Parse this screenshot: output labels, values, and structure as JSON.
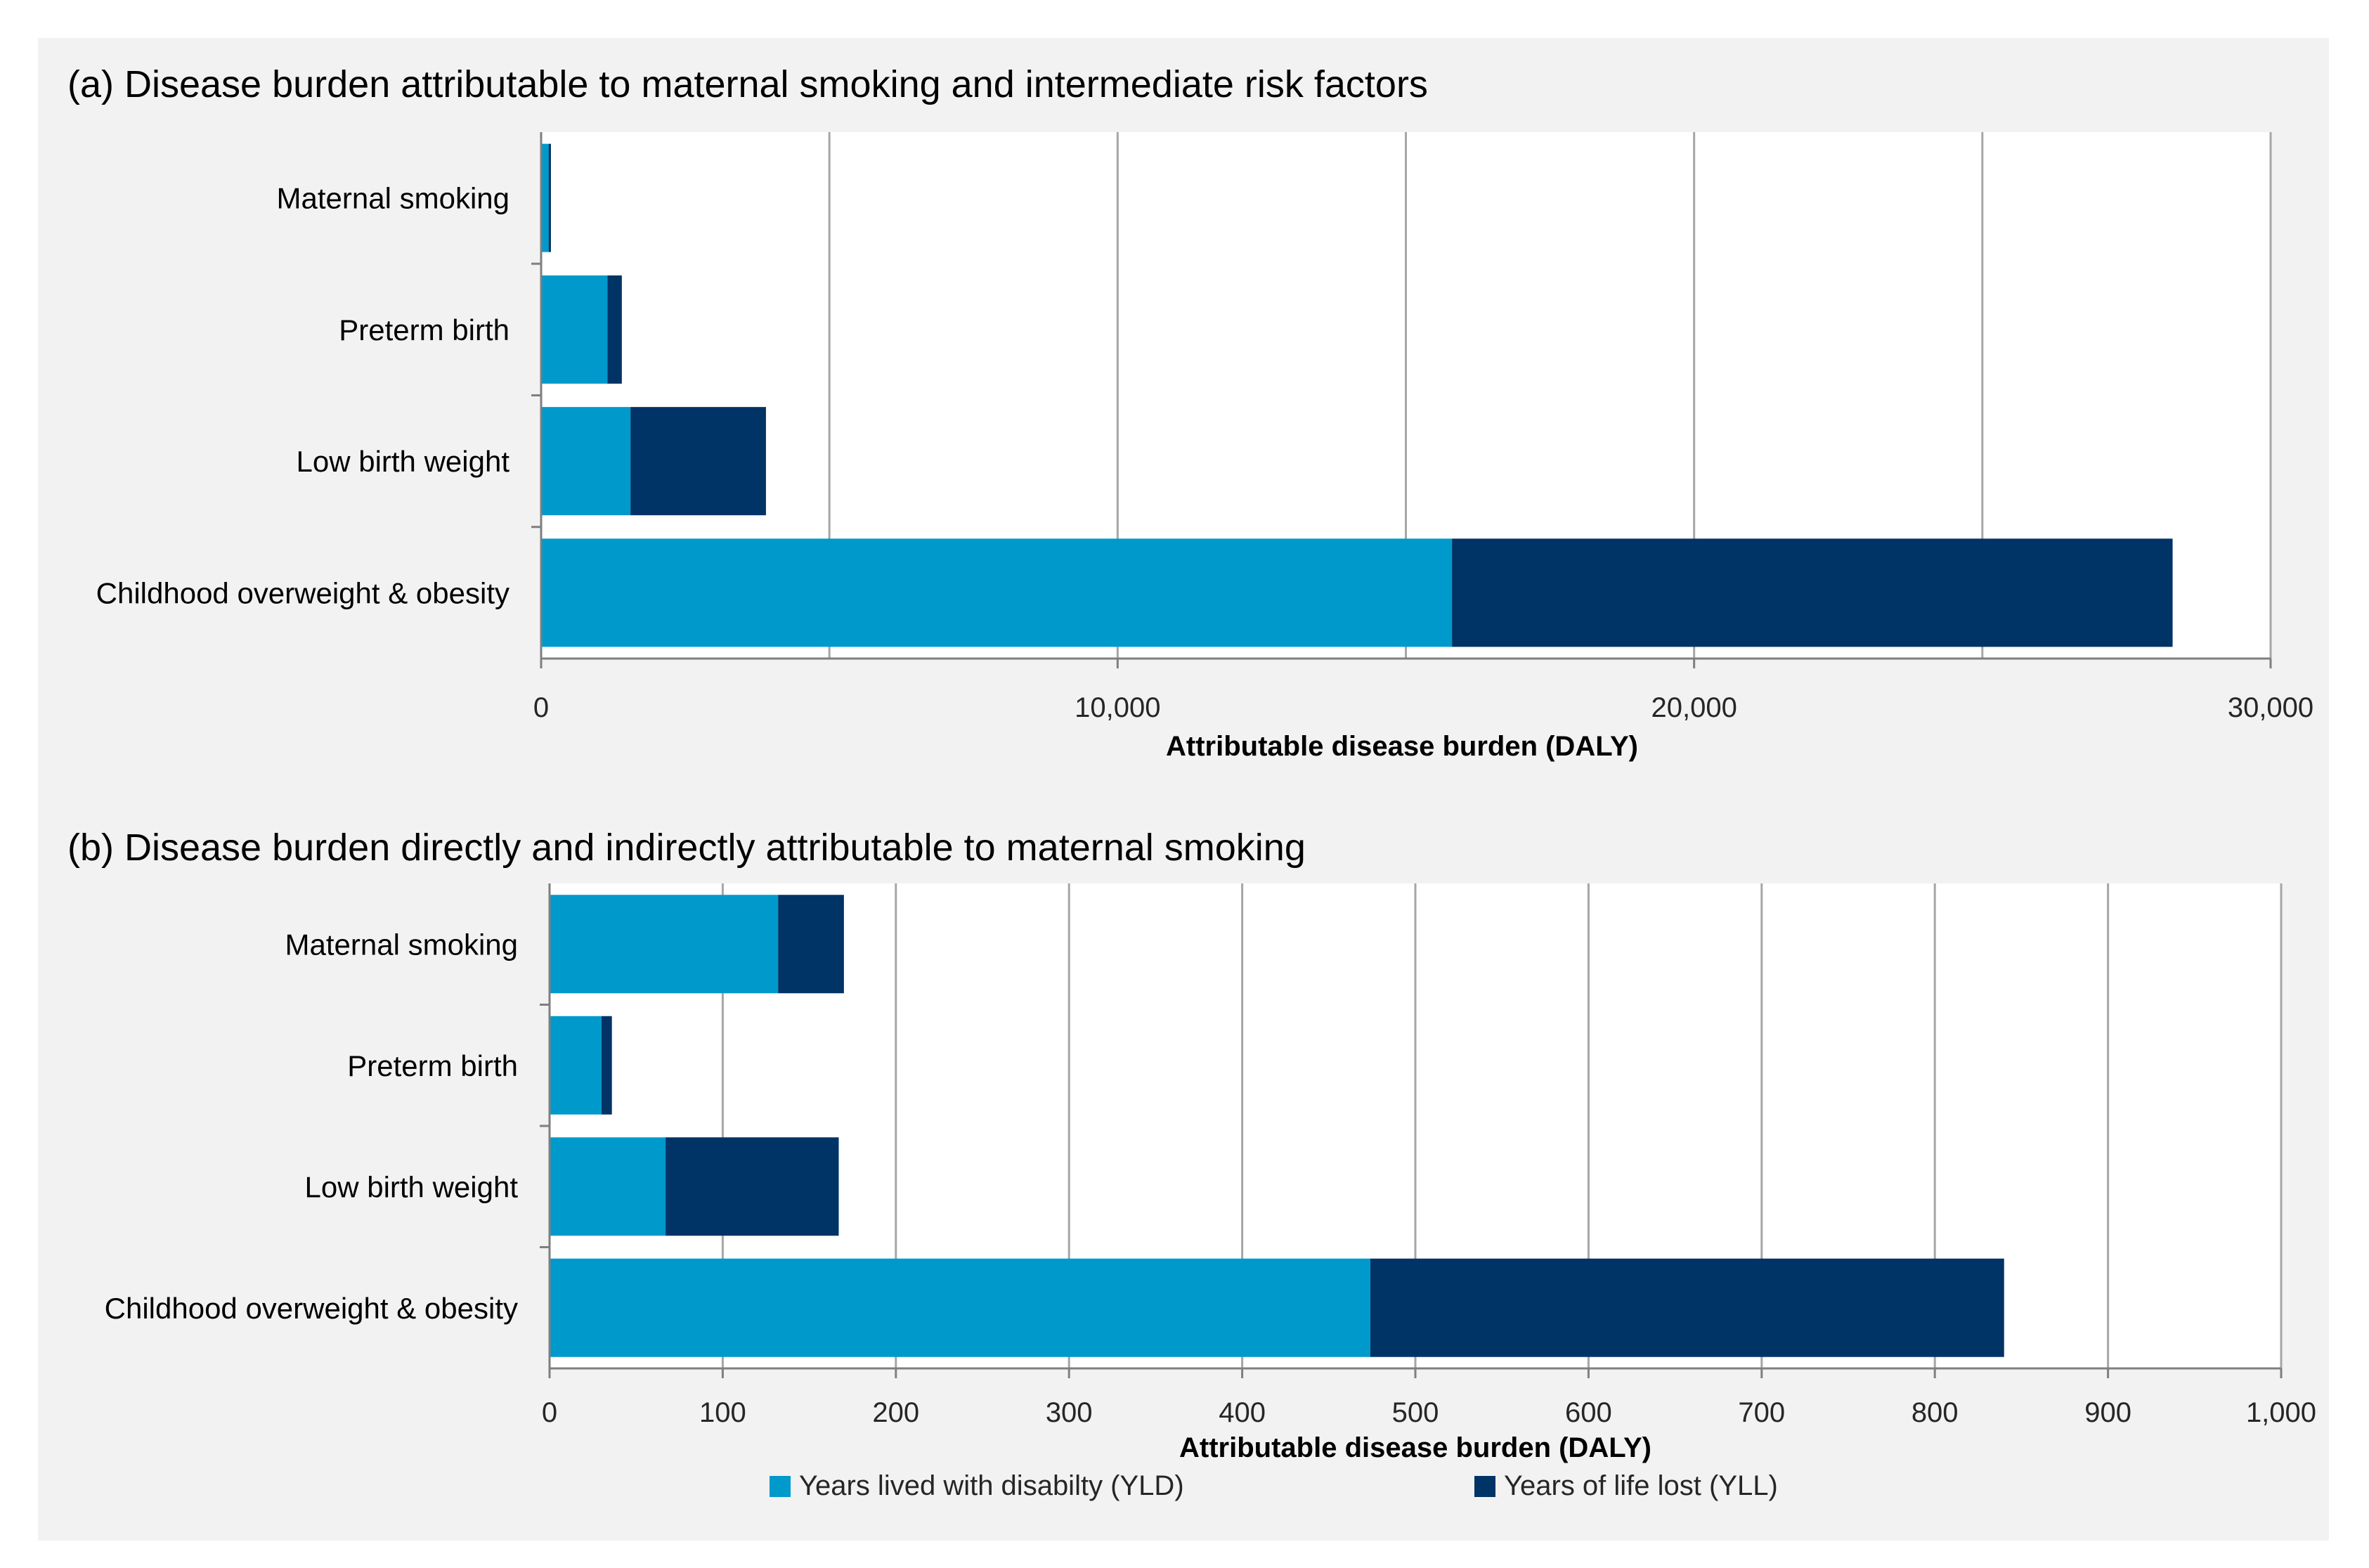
{
  "colors": {
    "yld": "#0099cc",
    "yll": "#003366",
    "panel_bg": "#f2f2f2",
    "grid": "#a6a6a6"
  },
  "legend": {
    "yld_label": "Years lived with disabilty (YLD)",
    "yll_label": "Years of life lost (YLL)"
  },
  "chart_data": [
    {
      "type": "bar",
      "orientation": "horizontal",
      "stacked": true,
      "title": "(a) Disease burden attributable to maternal smoking and intermediate risk factors",
      "xlabel": "Attributable disease burden (DALY)",
      "ylabel": "",
      "xlim": [
        0,
        30000
      ],
      "xticks": [
        0,
        10000,
        20000,
        30000
      ],
      "xtick_labels": [
        "0",
        "10,000",
        "20,000",
        "30,000"
      ],
      "grid_values": [
        5000,
        10000,
        15000,
        20000,
        25000,
        30000
      ],
      "categories": [
        "Maternal smoking",
        "Preterm birth",
        "Low birth weight",
        "Childhood overweight & obesity"
      ],
      "series": [
        {
          "name": "Years lived with disabilty (YLD)",
          "key": "yld",
          "values": [
            130,
            1150,
            1550,
            15800
          ]
        },
        {
          "name": "Years of life lost (YLL)",
          "key": "yll",
          "values": [
            40,
            250,
            2350,
            12500
          ]
        }
      ]
    },
    {
      "type": "bar",
      "orientation": "horizontal",
      "stacked": true,
      "title": "(b) Disease burden directly and indirectly attributable to maternal smoking",
      "xlabel": "Attributable disease burden (DALY)",
      "ylabel": "",
      "xlim": [
        0,
        1000
      ],
      "xticks": [
        0,
        100,
        200,
        300,
        400,
        500,
        600,
        700,
        800,
        900,
        1000
      ],
      "xtick_labels": [
        "0",
        "100",
        "200",
        "300",
        "400",
        "500",
        "600",
        "700",
        "800",
        "900",
        "1,000"
      ],
      "grid_values": [
        100,
        200,
        300,
        400,
        500,
        600,
        700,
        800,
        900,
        1000
      ],
      "categories": [
        "Maternal smoking",
        "Preterm birth",
        "Low birth weight",
        "Childhood overweight & obesity"
      ],
      "series": [
        {
          "name": "Years lived with disabilty (YLD)",
          "key": "yld",
          "values": [
            132,
            30,
            67,
            474
          ]
        },
        {
          "name": "Years of life lost (YLL)",
          "key": "yll",
          "values": [
            38,
            6,
            100,
            366
          ]
        }
      ]
    }
  ]
}
